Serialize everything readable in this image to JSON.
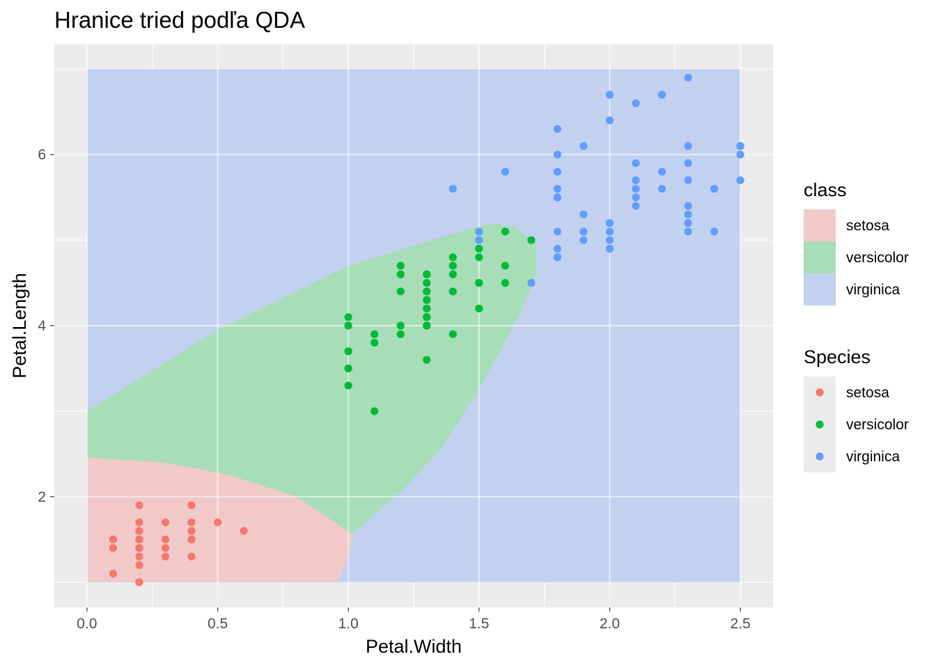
{
  "chart_data": {
    "type": "scatter",
    "title": "Hranice tried podľa QDA",
    "xlabel": "Petal.Width",
    "ylabel": "Petal.Length",
    "xlim": [
      -0.125,
      2.625
    ],
    "ylim": [
      0.705,
      7.295
    ],
    "x_ticks": [
      0.0,
      0.5,
      1.0,
      1.5,
      2.0,
      2.5
    ],
    "x_tick_labels": [
      "0.0",
      "0.5",
      "1.0",
      "1.5",
      "2.0",
      "2.5"
    ],
    "y_ticks": [
      2,
      4,
      6
    ],
    "y_tick_labels": [
      "2",
      "4",
      "6"
    ],
    "grid": true,
    "legend_position": "right",
    "grid_extent": {
      "x": [
        0.0,
        2.5
      ],
      "y": [
        1.0,
        7.0
      ]
    },
    "regions": {
      "legend_title": "class",
      "background_class": "virginica",
      "classes": [
        {
          "name": "setosa",
          "color": "#F0C9C8"
        },
        {
          "name": "versicolor",
          "color": "#A7DDB7"
        },
        {
          "name": "virginica",
          "color": "#C2D1F0"
        }
      ],
      "boundaries": {
        "versicolor": [
          [
            0.0,
            3.0
          ],
          [
            0.5,
            3.95
          ],
          [
            1.0,
            4.7
          ],
          [
            1.5,
            5.17
          ],
          [
            1.56,
            5.2
          ],
          [
            1.64,
            5.15
          ],
          [
            1.72,
            4.95
          ],
          [
            1.72,
            4.6
          ],
          [
            1.65,
            4.1
          ],
          [
            1.5,
            3.25
          ],
          [
            1.35,
            2.55
          ],
          [
            1.2,
            2.05
          ],
          [
            1.02,
            1.58
          ],
          [
            0.96,
            1.0
          ],
          [
            0.0,
            1.0
          ]
        ],
        "setosa": [
          [
            0.0,
            2.46
          ],
          [
            0.3,
            2.4
          ],
          [
            0.55,
            2.25
          ],
          [
            0.8,
            2.0
          ],
          [
            0.95,
            1.7
          ],
          [
            1.02,
            1.55
          ],
          [
            1.0,
            1.3
          ],
          [
            0.96,
            1.0
          ],
          [
            0.0,
            1.0
          ]
        ]
      }
    },
    "series": [
      {
        "name": "setosa",
        "color": "#F8766D",
        "points": [
          [
            0.2,
            1.4
          ],
          [
            0.2,
            1.3
          ],
          [
            0.2,
            1.5
          ],
          [
            0.2,
            1.4
          ],
          [
            0.4,
            1.7
          ],
          [
            0.3,
            1.4
          ],
          [
            0.2,
            1.5
          ],
          [
            0.1,
            1.5
          ],
          [
            0.2,
            1.6
          ],
          [
            0.1,
            1.4
          ],
          [
            0.1,
            1.1
          ],
          [
            0.2,
            1.2
          ],
          [
            0.4,
            1.5
          ],
          [
            0.4,
            1.3
          ],
          [
            0.3,
            1.7
          ],
          [
            0.3,
            1.5
          ],
          [
            0.2,
            1.7
          ],
          [
            0.4,
            1.5
          ],
          [
            0.2,
            1.0
          ],
          [
            0.5,
            1.7
          ],
          [
            0.2,
            1.9
          ],
          [
            0.4,
            1.6
          ],
          [
            0.6,
            1.6
          ],
          [
            0.3,
            1.3
          ],
          [
            0.4,
            1.9
          ]
        ]
      },
      {
        "name": "versicolor",
        "color": "#00BA38",
        "points": [
          [
            1.4,
            4.7
          ],
          [
            1.5,
            4.5
          ],
          [
            1.5,
            4.9
          ],
          [
            1.3,
            4.0
          ],
          [
            1.3,
            4.6
          ],
          [
            1.6,
            4.7
          ],
          [
            1.0,
            3.3
          ],
          [
            1.3,
            4.6
          ],
          [
            1.4,
            3.9
          ],
          [
            1.0,
            3.5
          ],
          [
            1.5,
            4.2
          ],
          [
            1.0,
            4.0
          ],
          [
            1.4,
            4.7
          ],
          [
            1.3,
            3.6
          ],
          [
            1.4,
            4.4
          ],
          [
            1.5,
            4.5
          ],
          [
            1.0,
            4.1
          ],
          [
            1.5,
            4.5
          ],
          [
            1.1,
            3.9
          ],
          [
            1.8,
            4.8
          ],
          [
            1.3,
            4.0
          ],
          [
            1.2,
            4.4
          ],
          [
            1.2,
            4.7
          ],
          [
            1.4,
            4.8
          ],
          [
            1.7,
            5.0
          ],
          [
            1.5,
            4.5
          ],
          [
            1.0,
            3.5
          ],
          [
            1.1,
            3.8
          ],
          [
            1.0,
            3.7
          ],
          [
            1.6,
            5.1
          ],
          [
            1.5,
            4.5
          ],
          [
            1.6,
            4.5
          ],
          [
            1.3,
            4.4
          ],
          [
            1.3,
            4.1
          ],
          [
            1.2,
            4.0
          ],
          [
            1.3,
            4.4
          ],
          [
            1.2,
            4.6
          ],
          [
            1.1,
            3.0
          ],
          [
            1.3,
            4.2
          ],
          [
            1.3,
            4.2
          ],
          [
            1.3,
            4.3
          ],
          [
            1.2,
            3.9
          ],
          [
            1.3,
            4.1
          ],
          [
            1.4,
            4.6
          ],
          [
            1.5,
            4.8
          ],
          [
            1.3,
            4.5
          ]
        ]
      },
      {
        "name": "virginica",
        "color": "#619CFF",
        "points": [
          [
            2.5,
            6.0
          ],
          [
            1.9,
            5.1
          ],
          [
            2.1,
            5.9
          ],
          [
            1.8,
            5.6
          ],
          [
            2.2,
            5.8
          ],
          [
            2.1,
            6.6
          ],
          [
            1.7,
            4.5
          ],
          [
            1.8,
            6.3
          ],
          [
            2.5,
            6.1
          ],
          [
            2.0,
            5.1
          ],
          [
            1.9,
            5.3
          ],
          [
            2.1,
            5.5
          ],
          [
            2.0,
            5.0
          ],
          [
            2.4,
            5.1
          ],
          [
            2.3,
            5.3
          ],
          [
            1.8,
            5.5
          ],
          [
            2.2,
            6.7
          ],
          [
            2.3,
            6.9
          ],
          [
            1.5,
            5.0
          ],
          [
            2.3,
            5.7
          ],
          [
            2.0,
            4.9
          ],
          [
            2.0,
            6.7
          ],
          [
            1.8,
            4.9
          ],
          [
            2.1,
            5.7
          ],
          [
            1.8,
            6.0
          ],
          [
            1.8,
            4.8
          ],
          [
            2.1,
            5.6
          ],
          [
            1.6,
            5.8
          ],
          [
            1.9,
            6.1
          ],
          [
            2.0,
            6.4
          ],
          [
            2.2,
            5.6
          ],
          [
            1.5,
            5.1
          ],
          [
            1.4,
            5.6
          ],
          [
            2.3,
            6.1
          ],
          [
            2.4,
            5.6
          ],
          [
            1.8,
            5.5
          ],
          [
            2.1,
            5.4
          ],
          [
            2.4,
            5.6
          ],
          [
            2.3,
            5.1
          ],
          [
            2.3,
            5.9
          ],
          [
            2.5,
            5.7
          ],
          [
            2.3,
            5.2
          ],
          [
            1.9,
            5.0
          ],
          [
            2.0,
            5.2
          ],
          [
            2.3,
            5.4
          ],
          [
            1.8,
            5.1
          ],
          [
            2.5,
            6.1
          ],
          [
            1.8,
            5.8
          ],
          [
            1.5,
            5.0
          ]
        ]
      }
    ],
    "legends": [
      {
        "title": "class",
        "entries": [
          "setosa",
          "versicolor",
          "virginica"
        ]
      },
      {
        "title": "Species",
        "entries": [
          "setosa",
          "versicolor",
          "virginica"
        ]
      }
    ]
  }
}
